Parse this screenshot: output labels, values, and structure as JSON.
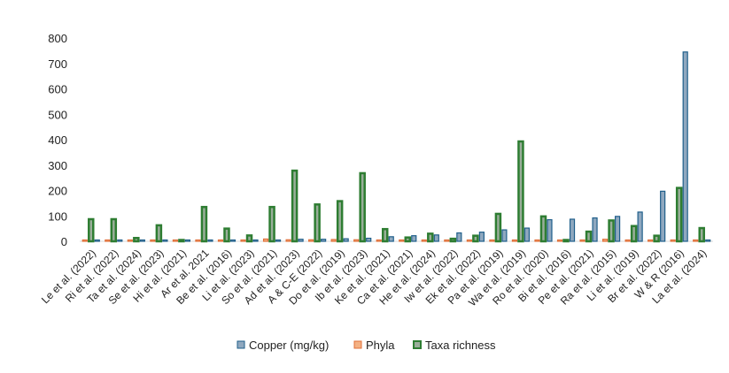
{
  "chart_data": {
    "type": "bar",
    "categories": [
      "Le et al. (2022)",
      "Ri et al. (2022)",
      "Ta et al. (2024)",
      "Se et al. (2023)",
      "Hi et al. (2021)",
      "Ar et al. 2021",
      "Be et al. (2016)",
      "Li et al. (2023)",
      "So et al. (2021)",
      "Ad et al. (2023)",
      "A & C-E (2022)",
      "Do et al. (2019)",
      "Ib et al. (2023)",
      "Ke et al. (2021)",
      "Ca et al. (2021)",
      "He et al. (2024)",
      "Iw et al. (2022)",
      "Ek et al. (2022)",
      "Pa et al. (2019)",
      "Wa et al. (2019)",
      "Ro et al. (2020)",
      "Bi et al. (2016)",
      "Pe et al. (2021)",
      "Ra et al. (2015)",
      "Li et al. (2019)",
      "Br et al. (2022)",
      "W & R  (2016)",
      "La et al. (2024)"
    ],
    "series": [
      {
        "name": "Copper (mg/kg)",
        "color": "#8fa8bf",
        "stroke": "#1f5f8b",
        "values": [
          2,
          2,
          2,
          1,
          1,
          3,
          3,
          3,
          4,
          8,
          8,
          10,
          12,
          18,
          22,
          25,
          33,
          36,
          45,
          52,
          85,
          87,
          92,
          98,
          115,
          197,
          745,
          0
        ]
      },
      {
        "name": "Phyla",
        "color": "#f4b183",
        "stroke": "#e0703a",
        "values": [
          2,
          5,
          3,
          5,
          2,
          2,
          3,
          5,
          9,
          6,
          6,
          7,
          6,
          4,
          3,
          3,
          3,
          4,
          4,
          3,
          3,
          2,
          3,
          8,
          4,
          3,
          4,
          4
        ]
      },
      {
        "name": "Taxa richness",
        "color": "#9aae9a",
        "stroke": "#2e7d32",
        "values": [
          87,
          87,
          13,
          63,
          0,
          135,
          50,
          23,
          135,
          278,
          145,
          158,
          268,
          48,
          15,
          30,
          10,
          22,
          108,
          393,
          98,
          0,
          38,
          82,
          60,
          22,
          210,
          52
        ]
      }
    ],
    "ylim": [
      0,
      800
    ],
    "yticks": [
      "0",
      "100",
      "200",
      "300",
      "400",
      "500",
      "600",
      "700",
      "800"
    ],
    "grid": false,
    "legend": "bottom"
  }
}
